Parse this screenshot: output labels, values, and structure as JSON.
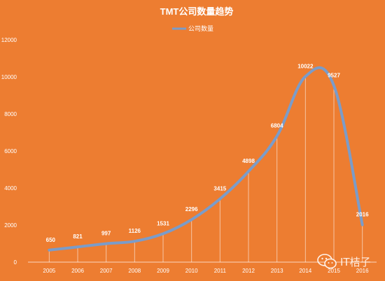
{
  "chart_data": {
    "type": "line",
    "title": "TMT公司数量趋势",
    "xlabel": "",
    "ylabel": "",
    "categories": [
      "2005",
      "2006",
      "2007",
      "2008",
      "2009",
      "2010",
      "2011",
      "2012",
      "2013",
      "2014",
      "2015",
      "2016"
    ],
    "series": [
      {
        "name": "公司数量",
        "values": [
          650,
          821,
          997,
          1126,
          1531,
          2296,
          3415,
          4898,
          6804,
          10022,
          9527,
          2016
        ]
      }
    ],
    "ylim": [
      0,
      12000
    ],
    "yticks": [
      0,
      2000,
      4000,
      6000,
      8000,
      10000,
      12000
    ],
    "legend": "top",
    "grid": false,
    "data_labels": true,
    "drop_lines": true,
    "colors": {
      "background": "#ED7D31",
      "line": "#7B9CC9",
      "text": "#FFFFFF"
    }
  },
  "watermark": {
    "icon": "wechat-icon",
    "text": "IT桔子"
  }
}
